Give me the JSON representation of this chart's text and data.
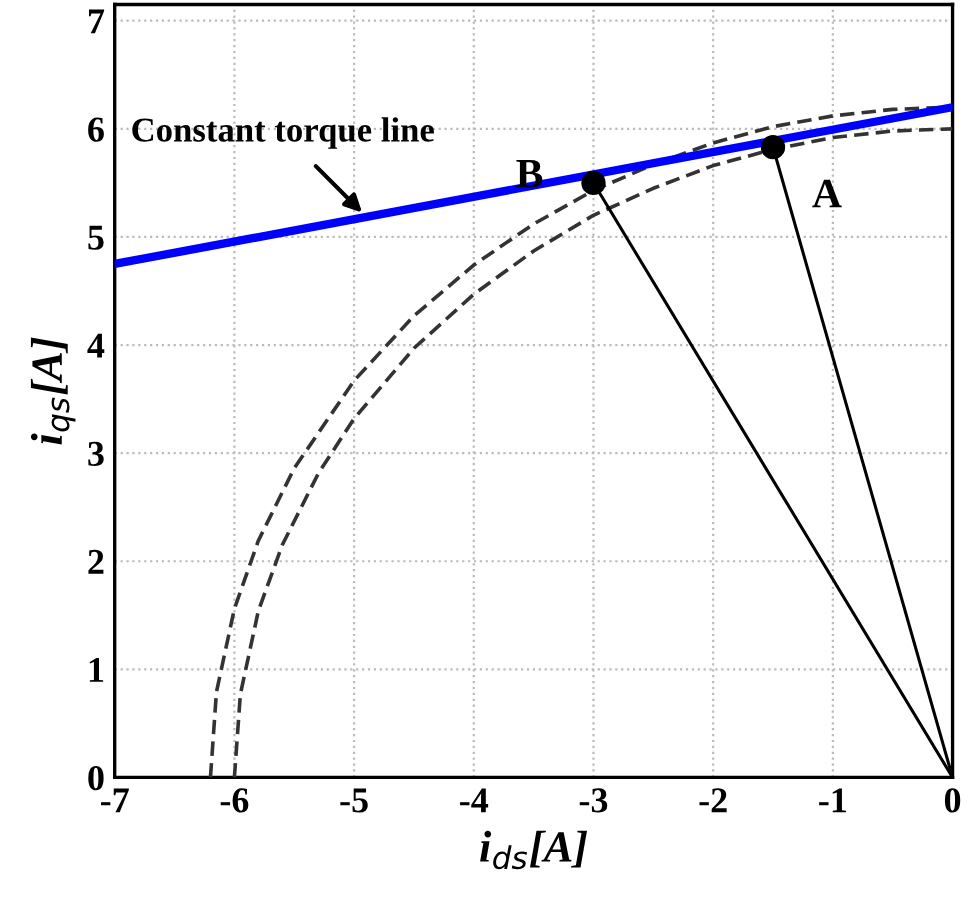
{
  "chart_data": {
    "type": "line",
    "xlabel": "i$_{ds}$[A]",
    "ylabel": "i$_{qs}$[A]",
    "xlim": [
      -7,
      0
    ],
    "ylim": [
      0,
      7.15
    ],
    "xticks": [
      -7,
      -6,
      -5,
      -4,
      -3,
      -2,
      -1,
      0
    ],
    "yticks": [
      0,
      1,
      2,
      3,
      4,
      5,
      6,
      7
    ],
    "grid": true,
    "legend": false,
    "series": [
      {
        "color": "#333333",
        "line_style": "dashed",
        "x": [
          -6.2,
          -6.15,
          -6.0,
          -5.8,
          -5.5,
          -5.0,
          -4.5,
          -4.0,
          -3.5,
          -3.0,
          -2.5,
          -2.0,
          -1.5,
          -1.0,
          -0.5,
          0
        ],
        "values": [
          0,
          0.79,
          1.56,
          2.19,
          2.86,
          3.67,
          4.27,
          4.74,
          5.12,
          5.43,
          5.67,
          5.87,
          6.02,
          6.12,
          6.18,
          6.2
        ]
      },
      {
        "color": "#333333",
        "line_style": "dashed",
        "x": [
          -6.0,
          -5.95,
          -5.8,
          -5.6,
          -5.3,
          -5.0,
          -4.5,
          -4.0,
          -3.5,
          -3.0,
          -2.5,
          -2.0,
          -1.5,
          -1.0,
          -0.5,
          0
        ],
        "values": [
          0,
          0.77,
          1.54,
          2.15,
          2.81,
          3.32,
          3.97,
          4.47,
          4.87,
          5.2,
          5.45,
          5.66,
          5.81,
          5.92,
          5.98,
          6.0
        ]
      },
      {
        "color": "#0000ff",
        "line_style": "solid",
        "x": [
          -7,
          0
        ],
        "values": [
          4.75,
          6.2
        ]
      },
      {
        "color": "#000000",
        "line_style": "solid",
        "x": [
          0,
          -3.0
        ],
        "values": [
          0,
          5.5
        ]
      },
      {
        "color": "#000000",
        "line_style": "solid",
        "x": [
          0,
          -1.5
        ],
        "values": [
          0,
          5.83
        ]
      },
      {
        "type": "scatter",
        "color": "#000000",
        "marker": "circle",
        "x": [
          -3.0,
          -1.5
        ],
        "values": [
          5.5,
          5.83
        ]
      }
    ],
    "annotations": [
      {
        "text": "B",
        "x": -3.0,
        "y": 5.5
      },
      {
        "text": "A",
        "x": -1.5,
        "y": 5.83
      },
      {
        "text": "Constant torque line",
        "x": -4.9,
        "y": 5.19
      }
    ]
  }
}
